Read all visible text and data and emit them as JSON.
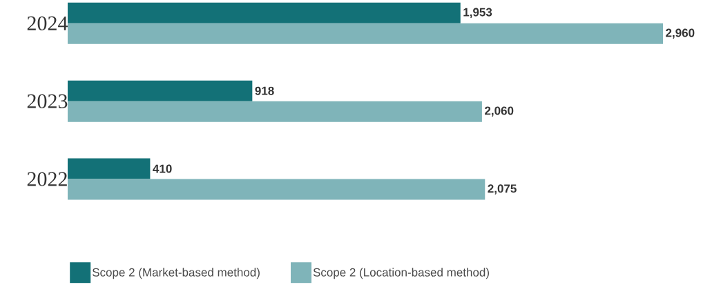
{
  "chart_data": {
    "type": "bar",
    "orientation": "horizontal",
    "categories": [
      "2024",
      "2023",
      "2022"
    ],
    "series": [
      {
        "name": "Scope 2 (Market-based method)",
        "color": "#137177",
        "values": [
          1953,
          918,
          410
        ],
        "value_labels": [
          "1,953",
          "918",
          "410"
        ]
      },
      {
        "name": "Scope 2 (Location-based method)",
        "color": "#7fb4b9",
        "values": [
          2960,
          2060,
          2075
        ],
        "value_labels": [
          "2,960",
          "2,060",
          "2,075"
        ]
      }
    ],
    "legend": "bottom left"
  }
}
